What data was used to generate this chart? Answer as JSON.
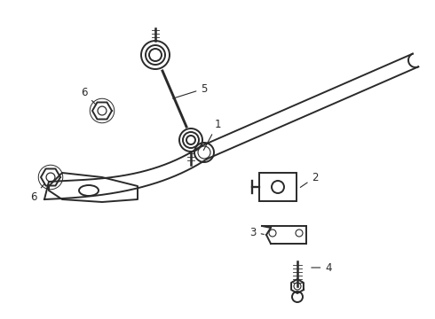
{
  "background_color": "#ffffff",
  "line_color": "#2a2a2a",
  "line_width": 1.4,
  "label_fontsize": 8.5,
  "fig_w": 4.9,
  "fig_h": 3.6,
  "dpi": 100
}
